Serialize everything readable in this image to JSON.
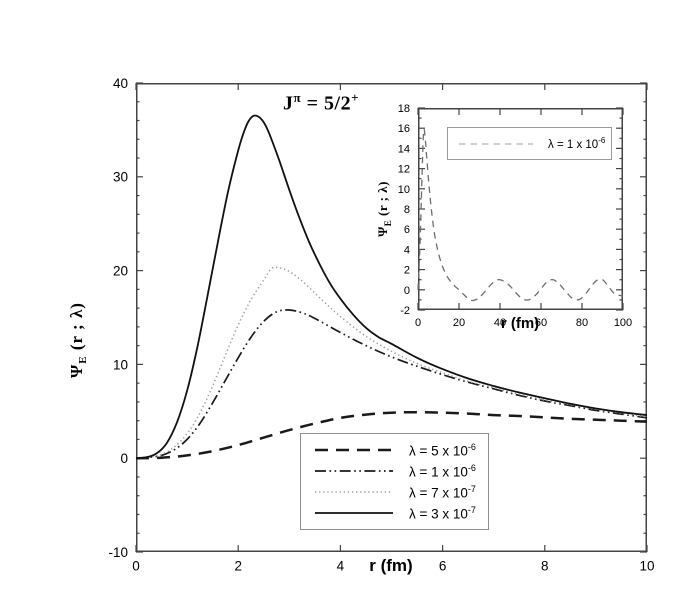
{
  "page": {
    "background": "#ffffff"
  },
  "colors": {
    "axis": "#444444",
    "text": "#000000",
    "solid_curve": "#111111",
    "dashed_curve": "#1a1a1a",
    "dotted_curve": "#9b9b9b",
    "inset_curve": "#6e6e6e",
    "legend_border": "#8d8d8d"
  },
  "chart_data": [
    {
      "type": "line",
      "title_base1": "J",
      "title_sup1": "π",
      "title_base2": " = 5/2",
      "title_sup2": "+",
      "title_full": "J^π = 5/2^+",
      "xlabel": "r (fm)",
      "ylabel_symbol": "Ψ",
      "ylabel_sub": "E",
      "ylabel_rest": " (r ; λ)",
      "ylabel_full": "Ψ_E (r ; λ)",
      "xlim": [
        0,
        10
      ],
      "ylim": [
        -10,
        40
      ],
      "xticks": [
        0,
        2,
        4,
        6,
        8,
        10
      ],
      "xtick_labels": [
        "0",
        "2",
        "4",
        "6",
        "8",
        "10"
      ],
      "yticks": [
        -10,
        0,
        10,
        20,
        30,
        40
      ],
      "ytick_labels": [
        "-10",
        "0",
        "10",
        "20",
        "30",
        "40"
      ],
      "y_minor_step": 2,
      "grid": false,
      "legend_position": "inside bottom-center",
      "series": [
        {
          "name": "λ = 5 x 10^-6",
          "label_base": "λ = 5 x 10",
          "label_exp": "-6",
          "style": "longdash",
          "x": [
            0,
            0.5,
            1.0,
            1.5,
            2.0,
            2.5,
            3.0,
            3.5,
            4.0,
            4.5,
            5.0,
            5.5,
            6.0,
            6.5,
            7.0,
            7.5,
            8.0,
            8.5,
            9.0,
            9.5,
            10.0
          ],
          "y": [
            0,
            0.05,
            0.3,
            0.75,
            1.4,
            2.2,
            3.0,
            3.7,
            4.3,
            4.65,
            4.85,
            4.9,
            4.85,
            4.75,
            4.6,
            4.5,
            4.35,
            4.2,
            4.1,
            4.0,
            3.9
          ]
        },
        {
          "name": "λ = 1 x 10^-6",
          "label_base": "λ = 1 x 10",
          "label_exp": "-6",
          "style": "dashdotdot",
          "x": [
            0,
            0.25,
            0.5,
            0.75,
            1.0,
            1.25,
            1.5,
            1.75,
            2.0,
            2.25,
            2.5,
            2.75,
            3.0,
            3.25,
            3.5,
            4.0,
            4.5,
            5.0,
            5.5,
            6.0,
            6.5,
            7.0,
            7.5,
            8.0,
            8.5,
            9.0,
            9.5,
            10.0
          ],
          "y": [
            0,
            0.1,
            0.3,
            0.9,
            2.0,
            3.7,
            5.9,
            8.3,
            10.7,
            12.9,
            14.6,
            15.6,
            15.8,
            15.5,
            14.9,
            13.4,
            12.0,
            10.8,
            9.8,
            8.9,
            8.1,
            7.4,
            6.7,
            6.1,
            5.6,
            5.1,
            4.7,
            4.3
          ]
        },
        {
          "name": "λ = 7 x 10^-7",
          "label_base": "λ = 7 x 10",
          "label_exp": "-7",
          "style": "dotted",
          "x": [
            0,
            0.25,
            0.5,
            0.75,
            1.0,
            1.25,
            1.5,
            1.75,
            2.0,
            2.25,
            2.5,
            2.65,
            2.8,
            3.0,
            3.25,
            3.5,
            3.75,
            4.0,
            4.5,
            5.0,
            5.5,
            6.0,
            6.5,
            7.0,
            7.5,
            8.0,
            8.5,
            9.0,
            9.5,
            10.0
          ],
          "y": [
            0,
            0.1,
            0.4,
            1.2,
            2.6,
            4.8,
            7.7,
            11.0,
            14.2,
            16.9,
            19.0,
            20.2,
            20.3,
            19.9,
            18.9,
            17.6,
            16.3,
            15.1,
            13.0,
            11.4,
            10.1,
            9.1,
            8.2,
            7.5,
            6.8,
            6.2,
            5.7,
            5.2,
            4.8,
            4.4
          ]
        },
        {
          "name": "λ = 3 x 10^-7",
          "label_base": "λ = 3 x 10",
          "label_exp": "-7",
          "style": "solid",
          "x": [
            0,
            0.2,
            0.4,
            0.6,
            0.8,
            1.0,
            1.2,
            1.4,
            1.6,
            1.8,
            2.0,
            2.1,
            2.2,
            2.3,
            2.4,
            2.5,
            2.6,
            2.8,
            3.0,
            3.2,
            3.4,
            3.6,
            3.8,
            4.0,
            4.25,
            4.5,
            4.75,
            5.0,
            5.5,
            6.0,
            6.5,
            7.0,
            7.5,
            8.0,
            8.5,
            9.0,
            9.5,
            10.0
          ],
          "y": [
            0,
            0.1,
            0.5,
            1.6,
            3.8,
            7.2,
            11.8,
            17.3,
            23.0,
            28.4,
            32.8,
            34.6,
            35.9,
            36.5,
            36.4,
            35.8,
            34.7,
            31.8,
            28.6,
            25.6,
            22.9,
            20.6,
            18.6,
            17.0,
            15.3,
            13.9,
            12.9,
            12.2,
            10.7,
            9.5,
            8.5,
            7.7,
            7.0,
            6.4,
            5.8,
            5.3,
            4.9,
            4.6
          ]
        }
      ]
    },
    {
      "type": "line",
      "xlabel": "r (fm)",
      "ylabel_symbol": "Ψ",
      "ylabel_sub": "E",
      "ylabel_rest": " (r ; λ)",
      "ylabel_full": "Ψ_E (r ; λ)",
      "xlim": [
        0,
        100
      ],
      "ylim": [
        -2,
        18
      ],
      "xticks": [
        0,
        20,
        40,
        60,
        80,
        100
      ],
      "xtick_labels": [
        "0",
        "20",
        "40",
        "60",
        "80",
        "100"
      ],
      "yticks": [
        -2,
        0,
        2,
        4,
        6,
        8,
        10,
        12,
        14,
        16,
        18
      ],
      "ytick_labels": [
        "-2",
        "0",
        "2",
        "4",
        "6",
        "8",
        "10",
        "12",
        "14",
        "16",
        "18"
      ],
      "y_minor_step": 1,
      "grid": false,
      "legend_position": "inside top-center",
      "series": [
        {
          "name": "λ = 1 x 10^-6",
          "label_base": "λ = 1 x 10",
          "label_exp": "-6",
          "style": "insetdash",
          "x": [
            0,
            1,
            2,
            2.75,
            3.5,
            4.5,
            5.5,
            6.5,
            8,
            10,
            12,
            14,
            16,
            18,
            20,
            22,
            24,
            26,
            28,
            30,
            33,
            36,
            39,
            42,
            45,
            48,
            51,
            54,
            57,
            60,
            63,
            66,
            69,
            72,
            75,
            78,
            81,
            84,
            87,
            90,
            93,
            96,
            100
          ],
          "y": [
            0,
            4.5,
            11.5,
            15.7,
            15.0,
            12.5,
            10.0,
            8.0,
            5.6,
            3.6,
            2.3,
            1.4,
            0.8,
            0.35,
            0.0,
            -0.4,
            -0.8,
            -1.05,
            -1.0,
            -0.75,
            -0.1,
            0.6,
            1.0,
            0.85,
            0.35,
            -0.35,
            -0.9,
            -1.0,
            -0.6,
            0.1,
            0.8,
            1.0,
            0.55,
            -0.15,
            -0.8,
            -1.0,
            -0.6,
            0.2,
            0.9,
            1.0,
            0.3,
            -0.4,
            -0.6
          ]
        }
      ]
    }
  ]
}
